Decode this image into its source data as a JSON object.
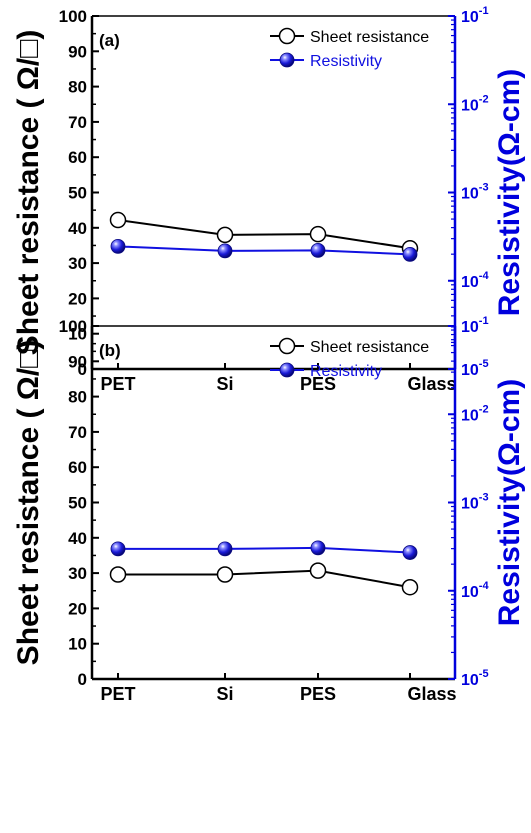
{
  "chart_data": [
    {
      "type": "line",
      "panel_label": "(a)",
      "categories": [
        "PET",
        "Si",
        "PES",
        "Glass"
      ],
      "ylabel": "Sheet resistance ( Ω/□)",
      "ylim": [
        0,
        100
      ],
      "yticks": [
        "0",
        "10",
        "20",
        "30",
        "40",
        "50",
        "60",
        "70",
        "80",
        "90",
        "100"
      ],
      "y2label": "Resistivity(Ω-cm)",
      "y2lim": [
        1e-05,
        0.1
      ],
      "y2scale": "log",
      "y2ticks": [
        {
          "base": "10",
          "exp": "-5",
          "value": 1e-05
        },
        {
          "base": "10",
          "exp": "-4",
          "value": 0.0001
        },
        {
          "base": "10",
          "exp": "-3",
          "value": 0.001
        },
        {
          "base": "10",
          "exp": "-2",
          "value": 0.01
        },
        {
          "base": "10",
          "exp": "-1",
          "value": 0.1
        }
      ],
      "legend_position": "top-right",
      "series": [
        {
          "name": "Sheet resistance",
          "axis": "left",
          "color": "#000000",
          "marker": "open-circle",
          "values": [
            42.2,
            38.0,
            38.2,
            34.2
          ]
        },
        {
          "name": "Resistivity",
          "axis": "right",
          "color": "#1010e0",
          "marker": "filled-blue-sphere",
          "values": [
            0.000245,
            0.000218,
            0.000221,
            0.000199
          ]
        }
      ]
    },
    {
      "type": "line",
      "panel_label": "(b)",
      "categories": [
        "PET",
        "Si",
        "PES",
        "Glass"
      ],
      "ylabel": "Sheet resistance ( Ω/□)",
      "ylim": [
        0,
        100
      ],
      "yticks": [
        "0",
        "10",
        "20",
        "30",
        "40",
        "50",
        "60",
        "70",
        "80",
        "90",
        "100"
      ],
      "y2label": "Resistivity(Ω-cm)",
      "y2lim": [
        1e-05,
        0.1
      ],
      "y2scale": "log",
      "y2ticks": [
        {
          "base": "10",
          "exp": "-5",
          "value": 1e-05
        },
        {
          "base": "10",
          "exp": "-4",
          "value": 0.0001
        },
        {
          "base": "10",
          "exp": "-3",
          "value": 0.001
        },
        {
          "base": "10",
          "exp": "-2",
          "value": 0.01
        },
        {
          "base": "10",
          "exp": "-1",
          "value": 0.1
        }
      ],
      "legend_position": "top-right",
      "series": [
        {
          "name": "Sheet resistance",
          "axis": "left",
          "color": "#000000",
          "marker": "open-circle",
          "values": [
            29.6,
            29.6,
            30.7,
            26.0
          ]
        },
        {
          "name": "Resistivity",
          "axis": "right",
          "color": "#1010e0",
          "marker": "filled-blue-sphere",
          "values": [
            0.000298,
            0.000298,
            0.000306,
            0.000271
          ]
        }
      ]
    }
  ]
}
